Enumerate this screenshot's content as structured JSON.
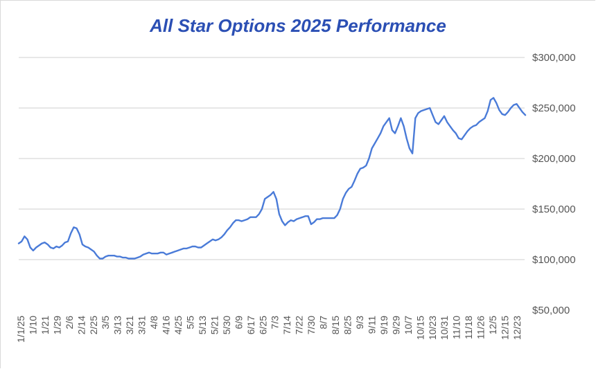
{
  "chart_data": {
    "type": "line",
    "title": "All Star Options 2025 Performance",
    "xlabel": "",
    "ylabel": "",
    "ylim": [
      50000,
      300000
    ],
    "y_ticks": [
      "$300,000",
      "$250,000",
      "$200,000",
      "$150,000",
      "$100,000",
      "$50,000"
    ],
    "y_tick_values": [
      300000,
      250000,
      200000,
      150000,
      100000,
      50000
    ],
    "x_tick_labels": [
      "1/1/25",
      "1/10",
      "1/21",
      "1/29",
      "2/6",
      "2/14",
      "2/25",
      "3/5",
      "3/13",
      "3/21",
      "3/31",
      "4/8",
      "4/16",
      "4/25",
      "5/5",
      "5/13",
      "5/21",
      "5/30",
      "6/9",
      "6/17",
      "6/25",
      "7/3",
      "7/14",
      "7/22",
      "7/30",
      "8/7",
      "8/15",
      "8/25",
      "9/3",
      "9/11",
      "9/19",
      "9/29",
      "10/7",
      "10/15",
      "10/23",
      "10/31",
      "11/10",
      "11/18",
      "11/26",
      "12/5",
      "12/15",
      "12/23"
    ],
    "grid": true,
    "legend": "none",
    "line_color": "#4a7bd8",
    "series": [
      {
        "values": [
          116000,
          118000,
          123000,
          120000,
          112000,
          109000,
          112000,
          114000,
          116000,
          117000,
          115000,
          112000,
          111000,
          113000,
          112000,
          114000,
          117000,
          118000,
          126000,
          132000,
          131000,
          125000,
          115000,
          113000,
          112000,
          110000,
          108000,
          104000,
          101000,
          101000,
          103000,
          104000,
          104000,
          104000,
          103000,
          103000,
          102000,
          102000,
          101000,
          101000,
          101000,
          102000,
          103000,
          105000,
          106000,
          107000,
          106000,
          106000,
          106000,
          107000,
          107000,
          105000,
          106000,
          107000,
          108000,
          109000,
          110000,
          111000,
          111000,
          112000,
          113000,
          113000,
          112000,
          112000,
          114000,
          116000,
          118000,
          120000,
          119000,
          120000,
          122000,
          125000,
          129000,
          132000,
          136000,
          139000,
          139000,
          138000,
          139000,
          140000,
          142000,
          142000,
          142000,
          145000,
          150000,
          160000,
          162000,
          164000,
          167000,
          160000,
          145000,
          138000,
          134000,
          137000,
          139000,
          138000,
          140000,
          141000,
          142000,
          143000,
          143000,
          135000,
          137000,
          140000,
          140000,
          141000,
          141000,
          141000,
          141000,
          141000,
          144000,
          150000,
          160000,
          166000,
          170000,
          172000,
          178000,
          185000,
          190000,
          191000,
          193000,
          200000,
          210000,
          215000,
          220000,
          225000,
          232000,
          236000,
          240000,
          228000,
          225000,
          232000,
          240000,
          232000,
          220000,
          210000,
          205000,
          240000,
          245000,
          247000,
          248000,
          249000,
          250000,
          243000,
          236000,
          234000,
          238000,
          242000,
          236000,
          232000,
          228000,
          225000,
          220000,
          219000,
          223000,
          227000,
          230000,
          232000,
          233000,
          236000,
          238000,
          240000,
          247000,
          258000,
          260000,
          255000,
          248000,
          244000,
          243000,
          246000,
          250000,
          253000,
          254000,
          250000,
          246000,
          243000
        ]
      }
    ]
  }
}
